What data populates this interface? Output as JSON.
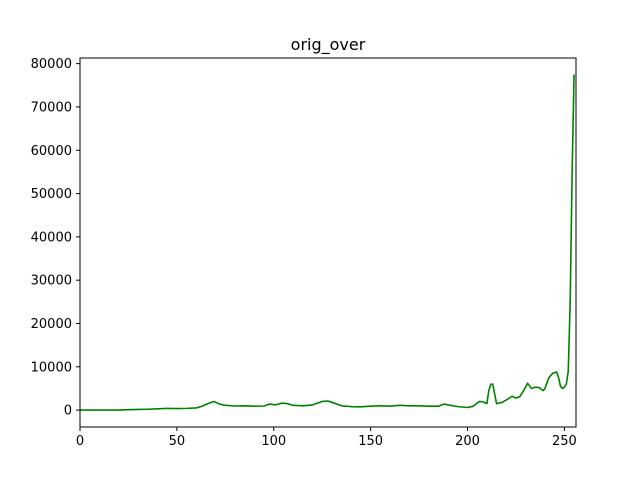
{
  "chart_data": {
    "type": "line",
    "title": "orig_over",
    "xlabel": "",
    "ylabel": "",
    "xlim": [
      0,
      256
    ],
    "ylim": [
      -3900,
      81300
    ],
    "xticks": [
      0,
      50,
      100,
      150,
      200,
      250
    ],
    "yticks": [
      0,
      10000,
      20000,
      30000,
      40000,
      50000,
      60000,
      70000,
      80000
    ],
    "grid": false,
    "series": [
      {
        "color": "#008000",
        "x": [
          0,
          10,
          20,
          25,
          30,
          35,
          40,
          45,
          50,
          55,
          60,
          63,
          66,
          69,
          72,
          75,
          80,
          85,
          90,
          95,
          98,
          101,
          104,
          107,
          110,
          115,
          120,
          125,
          128,
          130,
          135,
          140,
          145,
          150,
          155,
          160,
          165,
          170,
          175,
          180,
          185,
          188,
          190,
          195,
          200,
          203,
          206,
          208,
          210,
          211,
          212,
          213,
          215,
          218,
          221,
          223,
          225,
          227,
          229,
          231,
          233,
          235,
          237,
          239,
          240,
          242,
          244,
          246,
          247,
          248,
          249,
          250,
          251,
          252,
          253,
          254,
          255
        ],
        "y": [
          0,
          0,
          0,
          100,
          150,
          200,
          300,
          400,
          350,
          400,
          500,
          900,
          1500,
          2000,
          1400,
          1100,
          950,
          1000,
          900,
          950,
          1400,
          1200,
          1600,
          1500,
          1100,
          1000,
          1200,
          2000,
          2100,
          1800,
          1000,
          800,
          750,
          900,
          1000,
          900,
          1100,
          1000,
          1000,
          900,
          900,
          1400,
          1200,
          800,
          600,
          900,
          2000,
          1900,
          1500,
          4500,
          6000,
          6000,
          1500,
          1800,
          2600,
          3200,
          2800,
          3100,
          4500,
          6200,
          5000,
          5300,
          5200,
          4500,
          5000,
          7500,
          8500,
          8800,
          7500,
          5500,
          5000,
          5300,
          6000,
          9000,
          25000,
          55000,
          77500
        ]
      }
    ]
  }
}
